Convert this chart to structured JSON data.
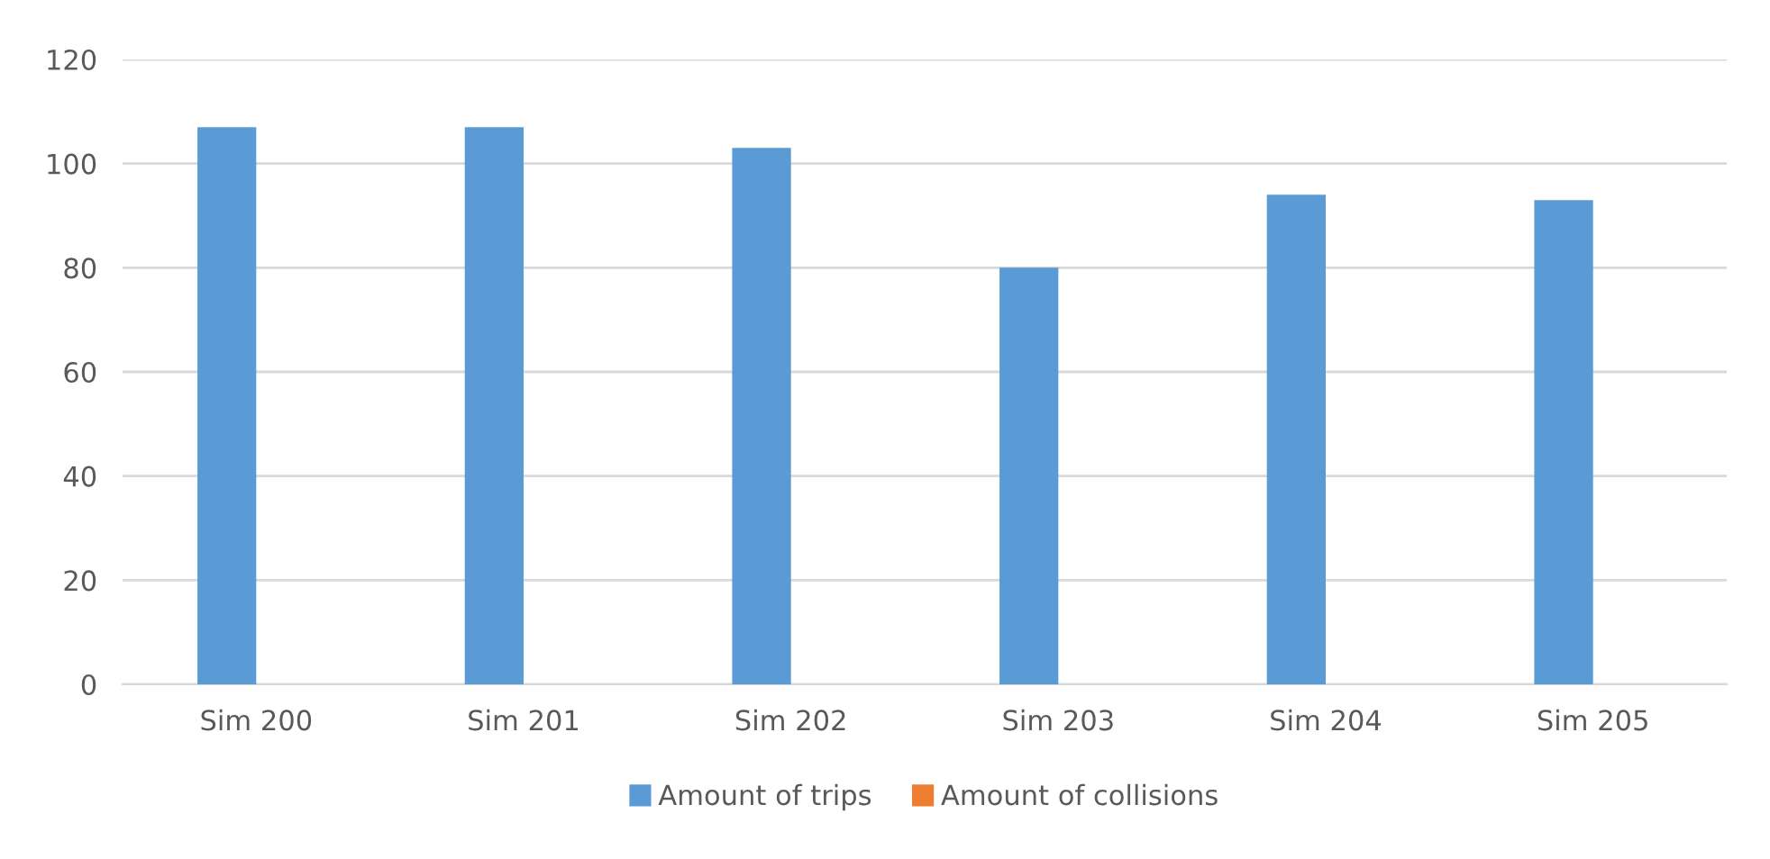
{
  "chart_data": {
    "type": "bar",
    "categories": [
      "Sim 200",
      "Sim 201",
      "Sim 202",
      "Sim 203",
      "Sim 204",
      "Sim 205"
    ],
    "series": [
      {
        "name": "Amount of trips",
        "color": "#5b9bd5",
        "values": [
          107,
          107,
          103,
          80,
          94,
          93
        ]
      },
      {
        "name": "Amount of collisions",
        "color": "#ed7d31",
        "values": [
          0,
          0,
          0,
          0,
          0,
          0
        ]
      }
    ],
    "ylim": [
      0,
      120
    ],
    "yticks": [
      0,
      20,
      40,
      60,
      80,
      100,
      120
    ],
    "grid": "y",
    "legend": "bottom"
  }
}
